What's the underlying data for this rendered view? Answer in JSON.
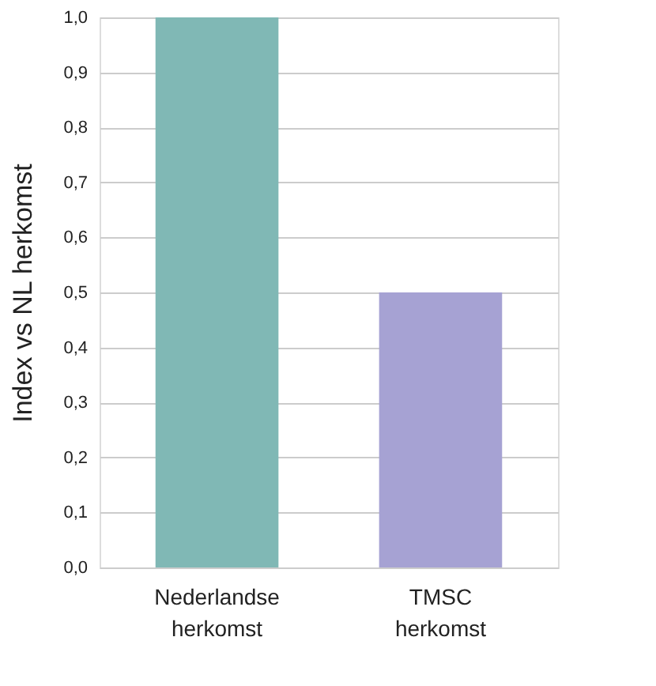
{
  "chart_data": {
    "type": "bar",
    "ylabel": "Index vs NL herkomst",
    "categories": [
      "Nederlandse herkomst",
      "TMSC herkomst"
    ],
    "values": [
      1.0,
      0.5
    ],
    "colors": [
      "#80b8b5",
      "#a6a2d3"
    ],
    "ylim": [
      0,
      1.0
    ],
    "yticks": [
      {
        "value": 0,
        "label": "0,0"
      },
      {
        "value": 0.1,
        "label": "0,1"
      },
      {
        "value": 0.2,
        "label": "0,2"
      },
      {
        "value": 0.3,
        "label": "0,3"
      },
      {
        "value": 0.4,
        "label": "0,4"
      },
      {
        "value": 0.5,
        "label": "0,5"
      },
      {
        "value": 0.6,
        "label": "0,6"
      },
      {
        "value": 0.7,
        "label": "0,7"
      },
      {
        "value": 0.8,
        "label": "0,8"
      },
      {
        "value": 0.9,
        "label": "0,9"
      },
      {
        "value": 1.0,
        "label": "1,0"
      }
    ],
    "grid": "y"
  }
}
